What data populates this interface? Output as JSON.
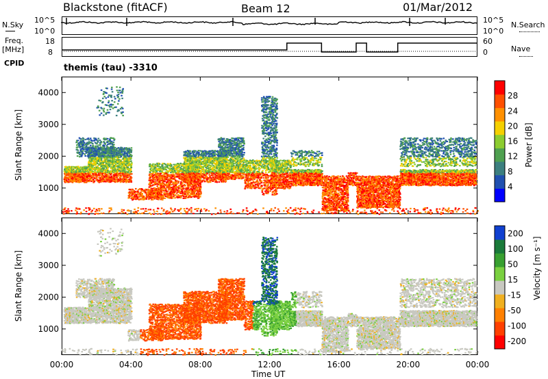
{
  "header": {
    "station": "Blackstone (fitACF)",
    "beam": "Beam 12",
    "date": "01/Mar/2012"
  },
  "noise_panel": {
    "left_label": "N.Sky",
    "left_ticks": [
      "10^5",
      "10^0"
    ],
    "right_ticks": [
      "10^5",
      "10^0"
    ],
    "right_label": "N.Search"
  },
  "freq_panel": {
    "left_label_1": "Freq.",
    "left_label_2": "[MHz]",
    "left_ticks": [
      "18",
      "8"
    ],
    "right_ticks": [
      "60",
      "0"
    ],
    "right_label": "Nave",
    "cpid_label": "CPID"
  },
  "cpid_text": "themis (tau) -3310",
  "chart_data": [
    {
      "type": "heatmap",
      "name": "power",
      "ylabel": "Slant Range [km]",
      "xlabel": "Time UT",
      "xlim": [
        0,
        24
      ],
      "ylim": [
        180,
        4500
      ],
      "y_ticks": [
        "1000",
        "2000",
        "3000",
        "4000"
      ],
      "colorbar_label": "Power [dB]",
      "colorbar_ticks": [
        "4",
        "8",
        "12",
        "16",
        "20",
        "24",
        "28"
      ],
      "colorbar_colors": [
        "#0000ff",
        "#2050b0",
        "#3c7f7f",
        "#4fa050",
        "#8ccc30",
        "#f5d000",
        "#ff9000",
        "#ff5000",
        "#ff0000"
      ]
    },
    {
      "type": "heatmap",
      "name": "velocity",
      "ylabel": "Slant Range [km]",
      "xlabel": "Time UT",
      "xlim": [
        0,
        24
      ],
      "ylim": [
        180,
        4500
      ],
      "y_ticks": [
        "1000",
        "2000",
        "3000",
        "4000"
      ],
      "colorbar_label": "Velocity [m s⁻¹]",
      "colorbar_ticks": [
        "200",
        "100",
        "50",
        "15",
        "-15",
        "-50",
        "-100",
        "-200"
      ],
      "colorbar_colors": [
        "#1040d0",
        "#1a7a3a",
        "#38a030",
        "#7ad040",
        "#c8c8c0",
        "#f0b020",
        "#ff8000",
        "#ff4000",
        "#ff0000"
      ]
    }
  ],
  "x_axis": {
    "ticks": [
      "00:00",
      "04:00",
      "08:00",
      "12:00",
      "16:00",
      "20:00",
      "00:00"
    ],
    "label": "Time UT"
  }
}
